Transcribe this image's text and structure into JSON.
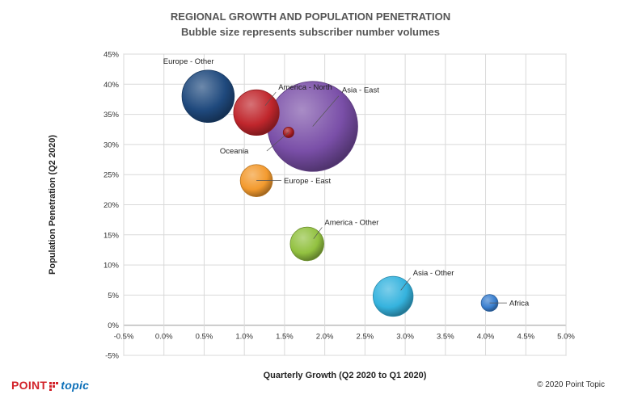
{
  "chart_data": {
    "type": "bubble",
    "title": "REGIONAL GROWTH AND POPULATION PENETRATION",
    "subtitle": "Bubble size represents subscriber number volumes",
    "xlabel": "Quarterly Growth (Q2 2020 to Q1 2020)",
    "ylabel": "Population Penetration (Q2 2020)",
    "xlim": [
      -0.5,
      5.0
    ],
    "ylim": [
      -5,
      45
    ],
    "x_ticks": [
      "-0.5%",
      "0.0%",
      "0.5%",
      "1.0%",
      "1.5%",
      "2.0%",
      "2.5%",
      "3.0%",
      "3.5%",
      "4.0%",
      "4.5%",
      "5.0%"
    ],
    "y_ticks": [
      "-5%",
      "0%",
      "5%",
      "10%",
      "15%",
      "20%",
      "25%",
      "30%",
      "35%",
      "40%",
      "45%"
    ],
    "grid": true,
    "size_unit": "relative subscriber volume",
    "series": [
      {
        "name": "Europe - Other",
        "x": 0.55,
        "y": 38.0,
        "size": 2.9,
        "color": "#1f497d",
        "label_pos": "top-left"
      },
      {
        "name": "America - North",
        "x": 1.15,
        "y": 35.3,
        "size": 2.2,
        "color": "#c0262c",
        "label_pos": "top-right"
      },
      {
        "name": "Asia - East",
        "x": 1.85,
        "y": 33.0,
        "size": 8.6,
        "color": "#7a4fa8",
        "label_pos": "top-right"
      },
      {
        "name": "Oceania",
        "x": 1.55,
        "y": 32.0,
        "size": 0.12,
        "color": "#a51c20",
        "label_pos": "bottom-left"
      },
      {
        "name": "Europe - East",
        "x": 1.15,
        "y": 24.0,
        "size": 1.1,
        "color": "#f39a2e",
        "label_pos": "right"
      },
      {
        "name": "America - Other",
        "x": 1.78,
        "y": 13.5,
        "size": 1.2,
        "color": "#92c140",
        "label_pos": "top-right"
      },
      {
        "name": "Asia - Other",
        "x": 2.85,
        "y": 4.8,
        "size": 1.7,
        "color": "#35b3de",
        "label_pos": "top-right"
      },
      {
        "name": "Africa",
        "x": 4.05,
        "y": 3.7,
        "size": 0.3,
        "color": "#3a7fcf",
        "label_pos": "right"
      }
    ]
  },
  "footer": {
    "logo_part1": "POINT",
    "logo_part2": "topic",
    "copyright": "© 2020 Point Topic"
  }
}
